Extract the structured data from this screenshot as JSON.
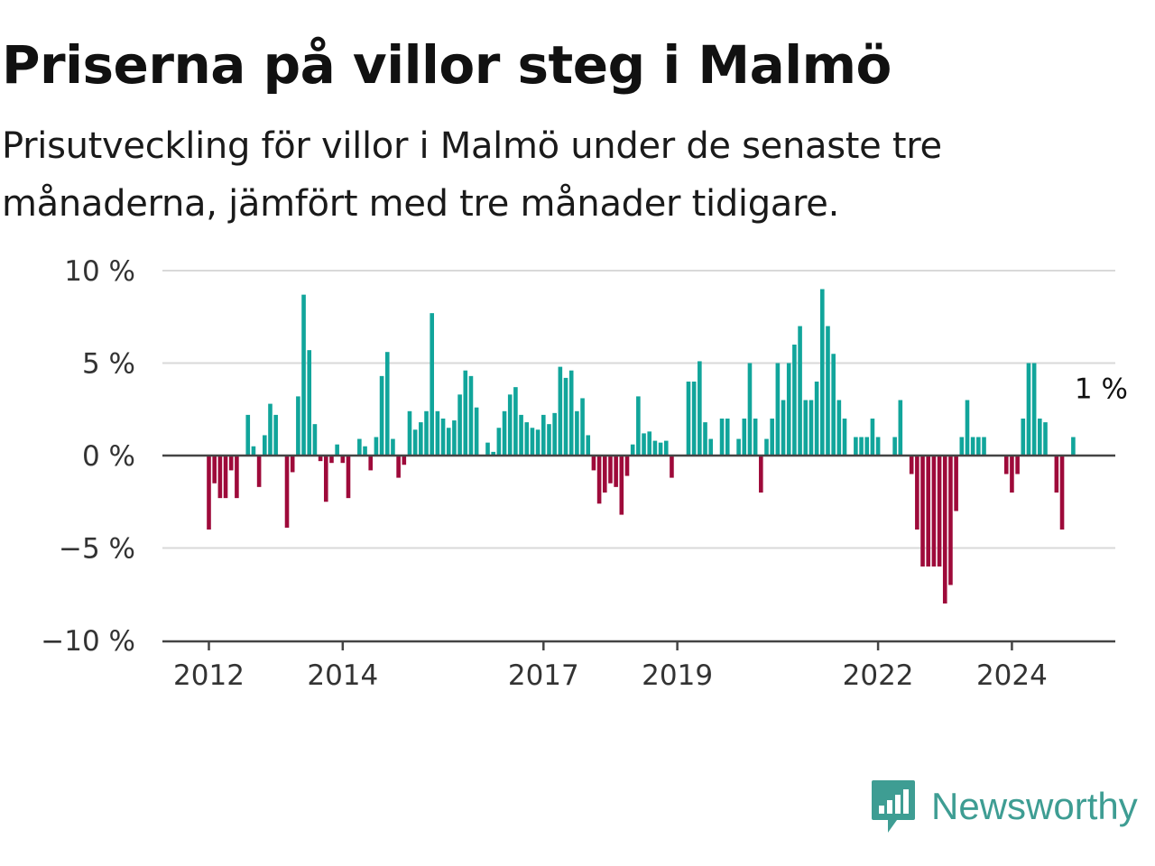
{
  "header": {
    "title": "Priserna på villor steg i Malmö",
    "subtitle": "Prisutveckling för villor i Malmö under de senaste tre månaderna, jämfört med tre månader tidigare."
  },
  "brand": {
    "name": "Newsworthy",
    "icon": "newsworthy-logo-icon",
    "color": "#3e9d93"
  },
  "colors": {
    "positive": "#11a59b",
    "negative": "#9e0a3a",
    "grid": "#d9d9d9",
    "axis": "#444444"
  },
  "chart_data": {
    "type": "bar",
    "title": "",
    "xlabel": "",
    "ylabel": "",
    "unit": "%",
    "ylim": [
      -10,
      10
    ],
    "yticks": [
      {
        "value": 10,
        "label": "10 %"
      },
      {
        "value": 5,
        "label": "5 %"
      },
      {
        "value": 0,
        "label": "0 %"
      },
      {
        "value": -5,
        "label": "−5 %"
      },
      {
        "value": -10,
        "label": "−10 %"
      }
    ],
    "xticks": [
      "2012",
      "2014",
      "2017",
      "2019",
      "2022",
      "2024"
    ],
    "grid": true,
    "start_month": "2012-01",
    "annotation": {
      "text": "1 %",
      "target": "last"
    },
    "values": [
      -4,
      -1.5,
      -2.3,
      -2.3,
      -0.8,
      -2.3,
      0,
      2.2,
      0.5,
      -1.7,
      1.1,
      2.8,
      2.2,
      0,
      -3.9,
      -0.9,
      3.2,
      8.7,
      5.7,
      1.7,
      -0.3,
      -2.5,
      -0.4,
      0.6,
      -0.4,
      -2.3,
      0,
      0.9,
      0.5,
      -0.8,
      1,
      4.3,
      5.6,
      0.9,
      -1.2,
      -0.5,
      2.4,
      1.4,
      1.8,
      2.4,
      7.7,
      2.4,
      2,
      1.5,
      1.9,
      3.3,
      4.6,
      4.3,
      2.6,
      0,
      0.7,
      0.2,
      1.5,
      2.4,
      3.3,
      3.7,
      2.2,
      1.8,
      1.5,
      1.4,
      2.2,
      1.7,
      2.3,
      4.8,
      4.2,
      4.6,
      2.4,
      3.1,
      1.1,
      -0.8,
      -2.6,
      -2,
      -1.5,
      -1.7,
      -3.2,
      -1.1,
      0.6,
      3.2,
      1.2,
      1.3,
      0.8,
      0.7,
      0.8,
      -1.2,
      0,
      0,
      4,
      4,
      5.1,
      1.8,
      0.9,
      0,
      2,
      2,
      0,
      0.9,
      2,
      5,
      2,
      -2,
      0.9,
      2,
      5,
      3,
      5,
      6,
      7,
      3,
      3,
      4,
      9,
      7,
      5.5,
      3,
      2,
      0,
      1,
      1,
      1,
      2,
      1,
      0,
      0,
      1,
      3,
      0,
      -1,
      -4,
      -6,
      -6,
      -6,
      -6,
      -8,
      -7,
      -3,
      1,
      3,
      1,
      1,
      1,
      0,
      0,
      0,
      -1,
      -2,
      -1,
      2,
      5,
      5,
      2,
      1.8,
      0,
      -2,
      -4,
      0,
      1
    ]
  }
}
